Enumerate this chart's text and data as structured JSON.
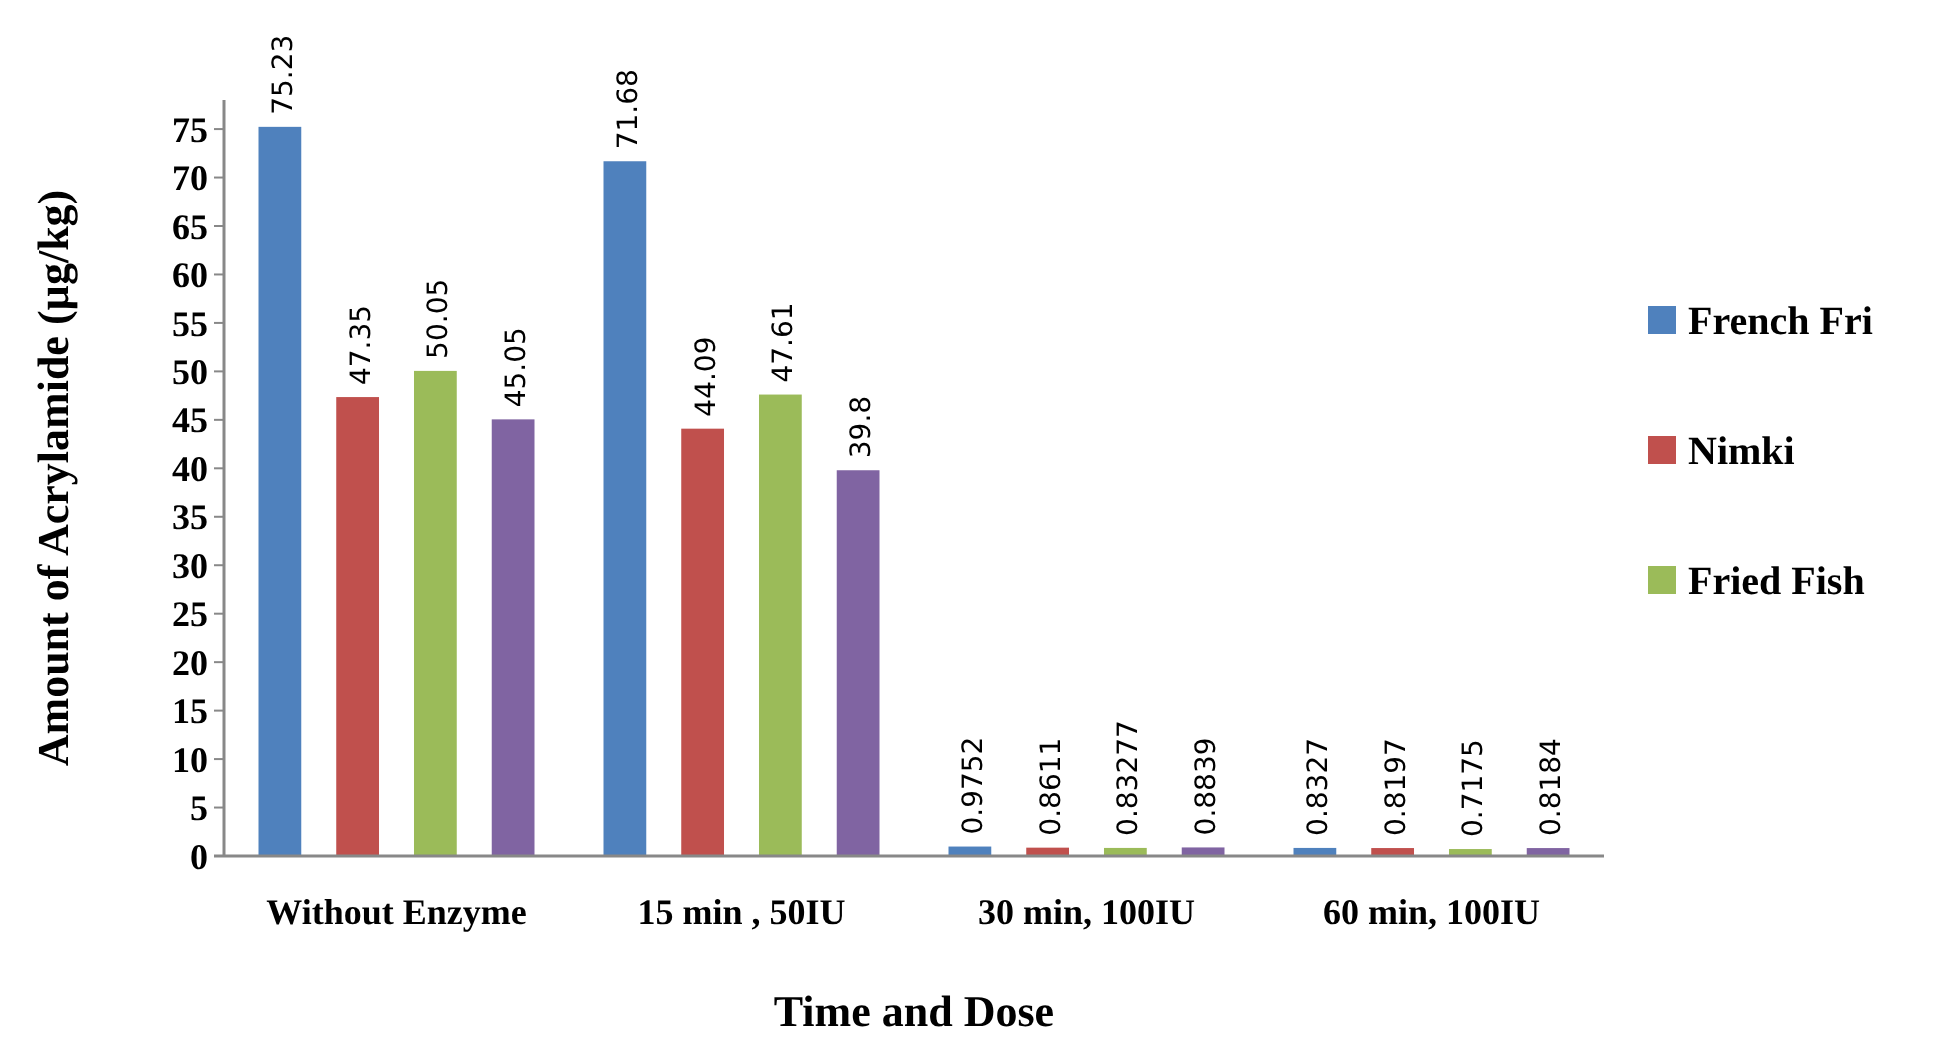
{
  "chart_data": {
    "type": "bar",
    "xlabel": "Time and Dose",
    "ylabel": "Amount of Acrylamide (µg/kg)",
    "categories": [
      "Without Enzyme",
      "15 min , 50IU",
      "30 min, 100IU",
      "60 min, 100IU"
    ],
    "series": [
      {
        "name": "French Fri",
        "color": "#4f81bd",
        "values": [
          75.23,
          71.68,
          0.9752,
          0.8327
        ]
      },
      {
        "name": "Nimki",
        "color": "#c0504d",
        "values": [
          47.35,
          44.09,
          0.8611,
          0.8197
        ]
      },
      {
        "name": "Fried Fish",
        "color": "#9bbb59",
        "values": [
          50.05,
          47.61,
          0.83277,
          0.7175
        ]
      },
      {
        "color": "#8064a2",
        "values": [
          45.05,
          39.8,
          0.8839,
          0.8184
        ]
      }
    ],
    "ylim": [
      0,
      78
    ],
    "yticks": [
      0,
      5,
      10,
      15,
      20,
      25,
      30,
      35,
      40,
      45,
      50,
      55,
      60,
      65,
      70,
      75
    ],
    "data_labels": true,
    "grid": false,
    "legend": "right"
  }
}
